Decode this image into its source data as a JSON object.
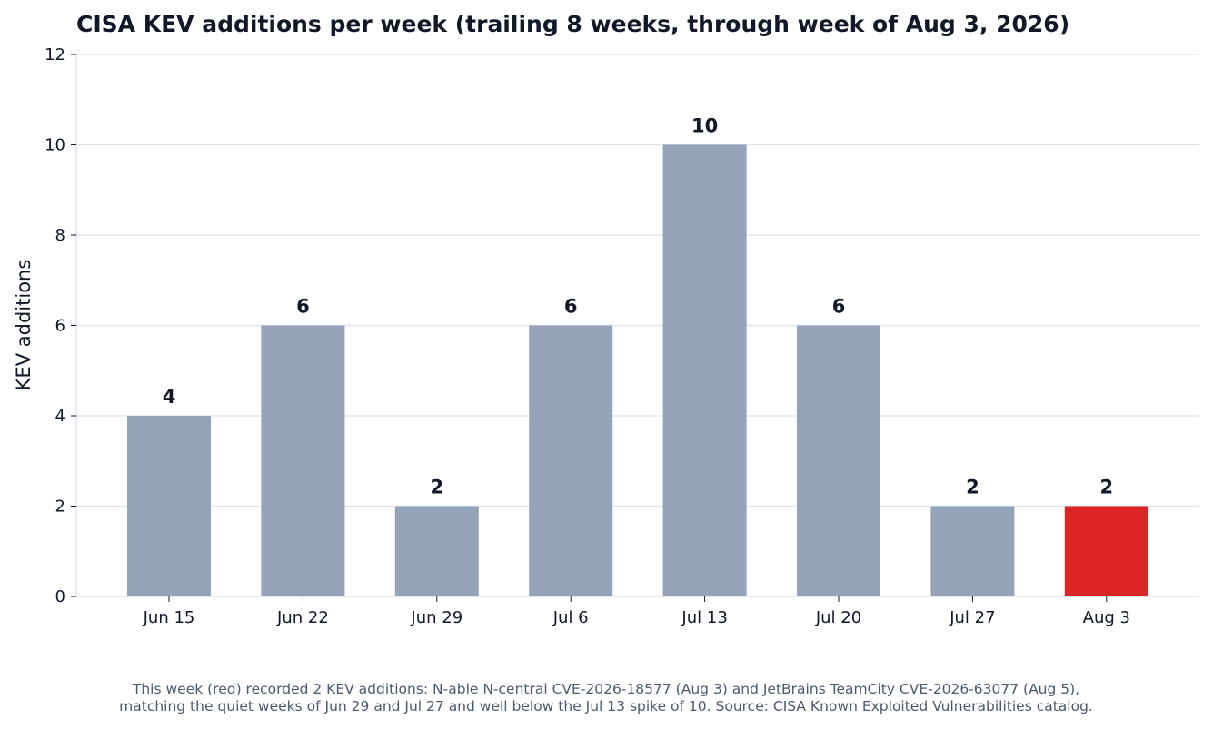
{
  "chart_data": {
    "type": "bar",
    "title": "CISA KEV additions per week (trailing 8 weeks, through week of Aug 3, 2026)",
    "xlabel": "",
    "ylabel": "KEV additions",
    "categories": [
      "Jun 15",
      "Jun 22",
      "Jun 29",
      "Jul 6",
      "Jul 13",
      "Jul 20",
      "Jul 27",
      "Aug 3"
    ],
    "values": [
      4,
      6,
      2,
      6,
      10,
      6,
      2,
      2
    ],
    "data_labels": [
      "4",
      "6",
      "2",
      "6",
      "10",
      "6",
      "2",
      "2"
    ],
    "highlight_index": 7,
    "ylim": [
      0,
      12
    ],
    "yticks": [
      0,
      2,
      4,
      6,
      8,
      10,
      12
    ],
    "ytick_labels": [
      "0",
      "2",
      "4",
      "6",
      "8",
      "10",
      "12"
    ],
    "grid": "horizontal",
    "colors": {
      "bar": "#94a3b8",
      "highlight": "#dc2626",
      "grid": "#dbe3ec",
      "text": "#111827",
      "caption": "#4b5a6e"
    }
  },
  "caption": {
    "line1": "This week (red) recorded 2 KEV additions: N-able N-central CVE-2026-18577 (Aug 3) and JetBrains TeamCity CVE-2026-63077 (Aug 5),",
    "line2": "matching the quiet weeks of Jun 29 and Jul 27 and well below the Jul 13 spike of 10. Source: CISA Known Exploited Vulnerabilities catalog."
  }
}
